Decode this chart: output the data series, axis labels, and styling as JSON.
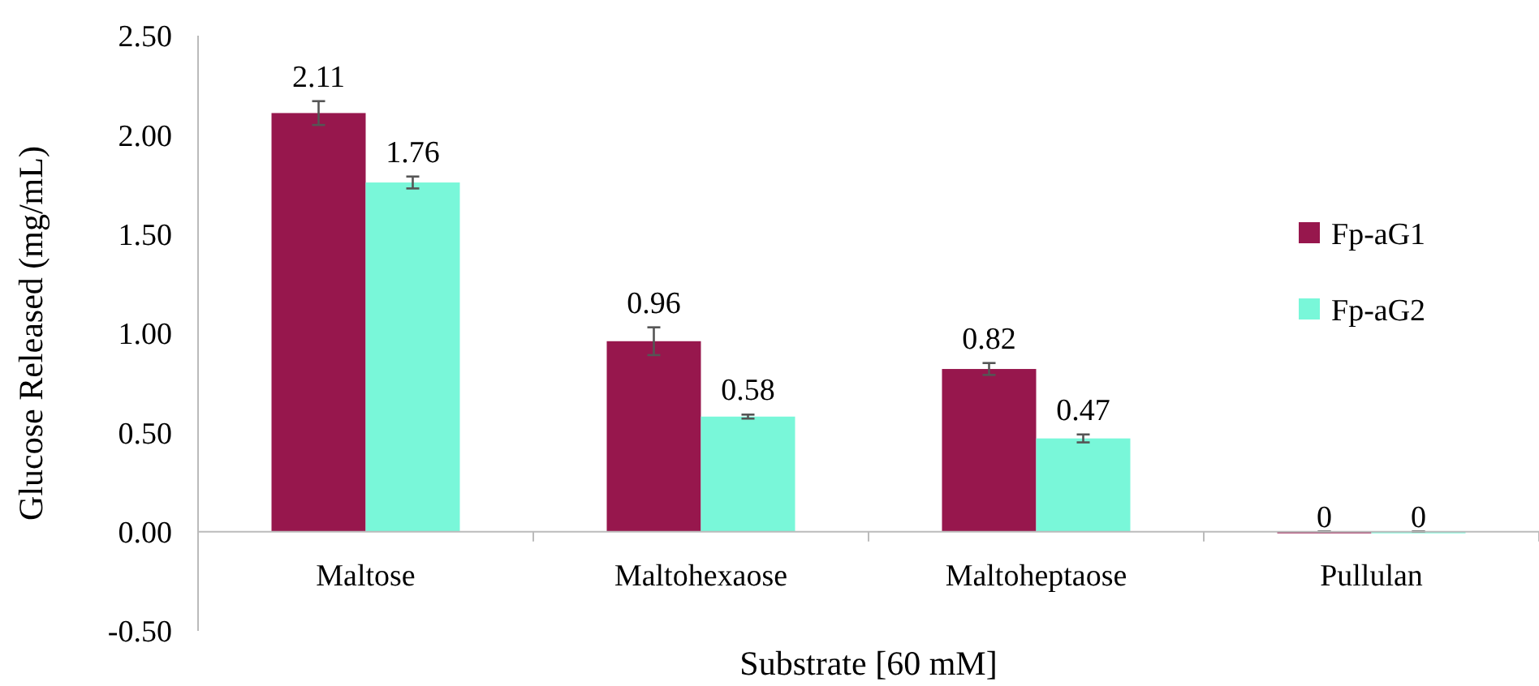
{
  "chart_data": {
    "type": "bar",
    "xlabel": "Substrate [60 mM]",
    "ylabel": "Glucose Released (mg/mL)",
    "categories": [
      "Maltose",
      "Maltohexaose",
      "Maltoheptaose",
      "Pullulan"
    ],
    "series": [
      {
        "name": "Fp-aG1",
        "color": "#97174d",
        "values": [
          2.11,
          0.96,
          0.82,
          0
        ],
        "errors": [
          0.06,
          0.07,
          0.03,
          0
        ]
      },
      {
        "name": "Fp-aG2",
        "color": "#79f7d9",
        "values": [
          1.76,
          0.58,
          0.47,
          0
        ],
        "errors": [
          0.03,
          0.01,
          0.02,
          0
        ]
      }
    ],
    "ylim": [
      -0.5,
      2.5
    ],
    "yticks": [
      {
        "value": -0.5,
        "label": "-0.50"
      },
      {
        "value": 0,
        "label": "0.00"
      },
      {
        "value": 0.5,
        "label": "0.50"
      },
      {
        "value": 1,
        "label": "1.00"
      },
      {
        "value": 1.5,
        "label": "1.50"
      },
      {
        "value": 2,
        "label": "2.00"
      },
      {
        "value": 2.5,
        "label": "2.50"
      }
    ],
    "data_labels": true,
    "legend": "top right",
    "grid": false
  }
}
